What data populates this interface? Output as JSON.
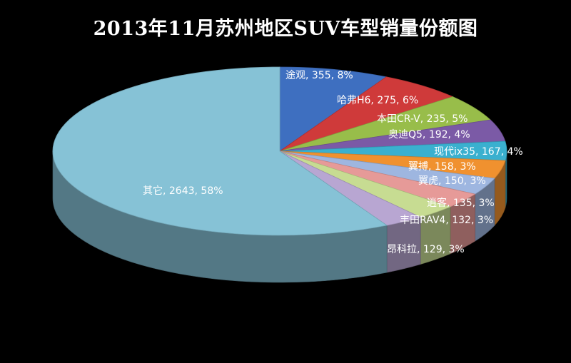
{
  "chart_data": {
    "type": "pie",
    "title": "2013年11月苏州地区SUV车型销量份额图",
    "slices": [
      {
        "name": "途观",
        "value": 355,
        "percent": "8%",
        "color": "#3e6fc0"
      },
      {
        "name": "哈弗H6",
        "value": 275,
        "percent": "6%",
        "color": "#cf3a3a"
      },
      {
        "name": "本田CR-V",
        "value": 235,
        "percent": "5%",
        "color": "#98bd4a"
      },
      {
        "name": "奥迪Q5",
        "value": 192,
        "percent": "4%",
        "color": "#7b5aa6"
      },
      {
        "name": "现代ix35",
        "value": 167,
        "percent": "4%",
        "color": "#3ab0cf"
      },
      {
        "name": "翼搏",
        "value": 158,
        "percent": "3%",
        "color": "#f0912f"
      },
      {
        "name": "翼虎",
        "value": 150,
        "percent": "3%",
        "color": "#9eb6e0"
      },
      {
        "name": "逍客",
        "value": 135,
        "percent": "3%",
        "color": "#e69a98"
      },
      {
        "name": "丰田RAV4",
        "value": 132,
        "percent": "3%",
        "color": "#c7dc92"
      },
      {
        "name": "昂科拉",
        "value": 129,
        "percent": "3%",
        "color": "#b8a6d2"
      },
      {
        "name": "其它",
        "value": 2643,
        "percent": "58%",
        "color": "#86c2d6"
      }
    ]
  }
}
